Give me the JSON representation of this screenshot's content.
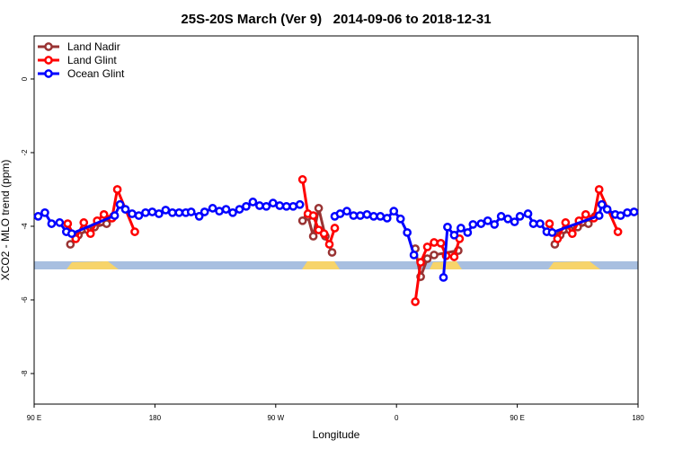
{
  "chart_data": {
    "type": "line",
    "title": "25S-20S March (Ver 9)   2014-09-06 to 2018-12-31",
    "xlabel": "Longitude",
    "ylabel": "XCO2 - MLO trend (ppm)",
    "xlim": [
      90,
      540
    ],
    "ylim": [
      -8.83,
      1.17
    ],
    "xticks": [
      {
        "value": 90,
        "label": "90 E"
      },
      {
        "value": 180,
        "label": "180"
      },
      {
        "value": 270,
        "label": "90 W"
      },
      {
        "value": 360,
        "label": "0"
      },
      {
        "value": 450,
        "label": "90 E"
      },
      {
        "value": 540,
        "label": "180"
      }
    ],
    "yticks": [
      0,
      -2,
      -4,
      -6,
      -8
    ],
    "legend": "top-left",
    "series": [
      {
        "name": "Land Nadir",
        "color": "#993333",
        "x": [
          117,
          123,
          130,
          135,
          144,
          149,
          null,
          290,
          294,
          298,
          302,
          307,
          312,
          null,
          374,
          378,
          383,
          388,
          406,
          null,
          478,
          482,
          489,
          495,
          503,
          508
        ],
        "values": [
          -4.49,
          -4.24,
          -4.1,
          -4.02,
          -3.93,
          -3.73,
          null,
          -3.85,
          -3.73,
          -4.27,
          -3.51,
          -4.27,
          -4.71,
          null,
          -4.61,
          -5.37,
          -4.88,
          -4.78,
          -4.66,
          null,
          -4.49,
          -4.24,
          -4.1,
          -4.02,
          -3.93,
          -3.73
        ]
      },
      {
        "name": "Land Glint",
        "color": "#ff0000",
        "x": [
          115,
          121,
          127,
          132,
          137,
          142,
          148,
          152,
          165,
          null,
          290,
          294,
          298,
          302,
          306,
          310,
          314,
          null,
          374,
          378,
          383,
          388,
          393,
          397,
          403,
          407,
          null,
          474,
          480,
          486,
          491,
          496,
          501,
          507,
          511,
          525
        ],
        "values": [
          -3.93,
          -4.34,
          -3.9,
          -4.2,
          -3.85,
          -3.68,
          -3.78,
          -3.0,
          -4.15,
          null,
          -2.73,
          -3.66,
          -3.71,
          -4.1,
          -4.2,
          -4.49,
          -4.05,
          null,
          -6.05,
          -4.98,
          -4.56,
          -4.44,
          -4.46,
          -4.8,
          -4.83,
          -4.34,
          null,
          -3.93,
          -4.34,
          -3.9,
          -4.2,
          -3.85,
          -3.68,
          -3.78,
          -3.0,
          -4.15
        ]
      },
      {
        "name": "Ocean Glint",
        "color": "#0000ff",
        "x": [
          93,
          98,
          103,
          109,
          114,
          118,
          150,
          154,
          158,
          163,
          168,
          173,
          178,
          183,
          188,
          193,
          198,
          203,
          207,
          213,
          217,
          223,
          228,
          233,
          238,
          243,
          248,
          253,
          258,
          263,
          268,
          273,
          278,
          283,
          288,
          null,
          314,
          318,
          323,
          328,
          333,
          338,
          343,
          348,
          353,
          358,
          363,
          368,
          373,
          null,
          395,
          398,
          403,
          408,
          413,
          417,
          423,
          428,
          433,
          438,
          443,
          448,
          452,
          458,
          462,
          467,
          472,
          476,
          511,
          513,
          517,
          523,
          527,
          532,
          537
        ],
        "values": [
          -3.73,
          -3.63,
          -3.93,
          -3.9,
          -4.15,
          -4.2,
          -3.71,
          -3.41,
          -3.54,
          -3.66,
          -3.71,
          -3.63,
          -3.61,
          -3.66,
          -3.56,
          -3.63,
          -3.63,
          -3.63,
          -3.61,
          -3.73,
          -3.61,
          -3.51,
          -3.59,
          -3.54,
          -3.63,
          -3.54,
          -3.46,
          -3.34,
          -3.44,
          -3.46,
          -3.37,
          -3.44,
          -3.46,
          -3.46,
          -3.41,
          null,
          -3.73,
          -3.66,
          -3.59,
          -3.71,
          -3.71,
          -3.68,
          -3.73,
          -3.73,
          -3.78,
          -3.59,
          -3.8,
          -4.17,
          -4.78,
          null,
          -5.39,
          -4.02,
          -4.24,
          -4.05,
          -4.17,
          -3.95,
          -3.93,
          -3.85,
          -3.95,
          -3.73,
          -3.8,
          -3.88,
          -3.73,
          -3.66,
          -3.93,
          -3.93,
          -4.15,
          -4.17,
          -3.71,
          -3.41,
          -3.54,
          -3.68,
          -3.71,
          -3.63,
          -3.61
        ]
      }
    ]
  }
}
